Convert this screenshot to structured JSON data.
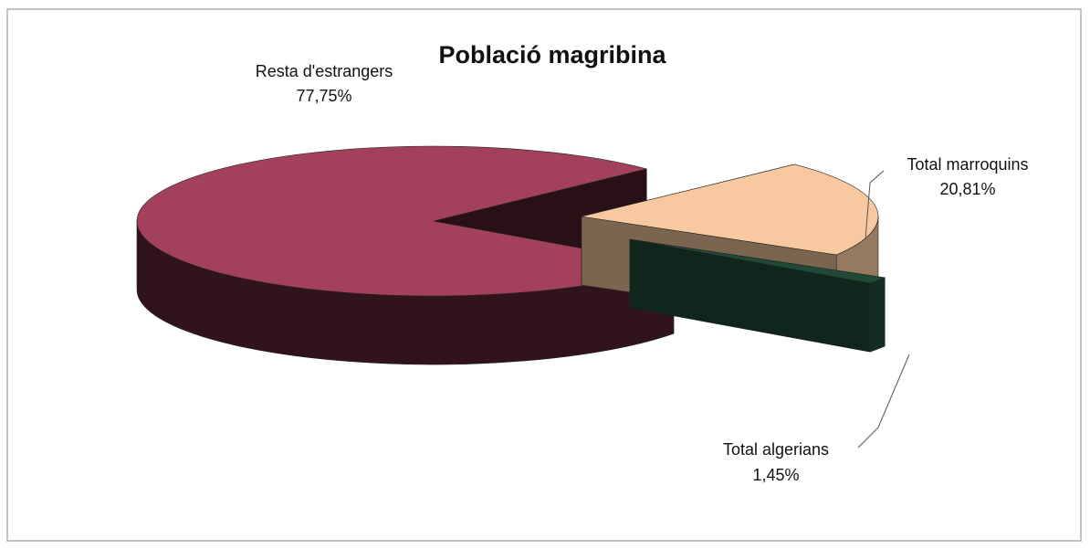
{
  "chart_data": {
    "type": "pie",
    "title": "Població magribina",
    "categories": [
      "Resta d'estrangers",
      "Total marroquins",
      "Total algerians"
    ],
    "values": [
      77.75,
      20.81,
      1.45
    ],
    "value_labels": [
      "77,75%",
      "20,81%",
      "1,45%"
    ],
    "colors": [
      "#a3405c",
      "#f8c9a0",
      "#1f4a37"
    ],
    "three_d": true
  }
}
